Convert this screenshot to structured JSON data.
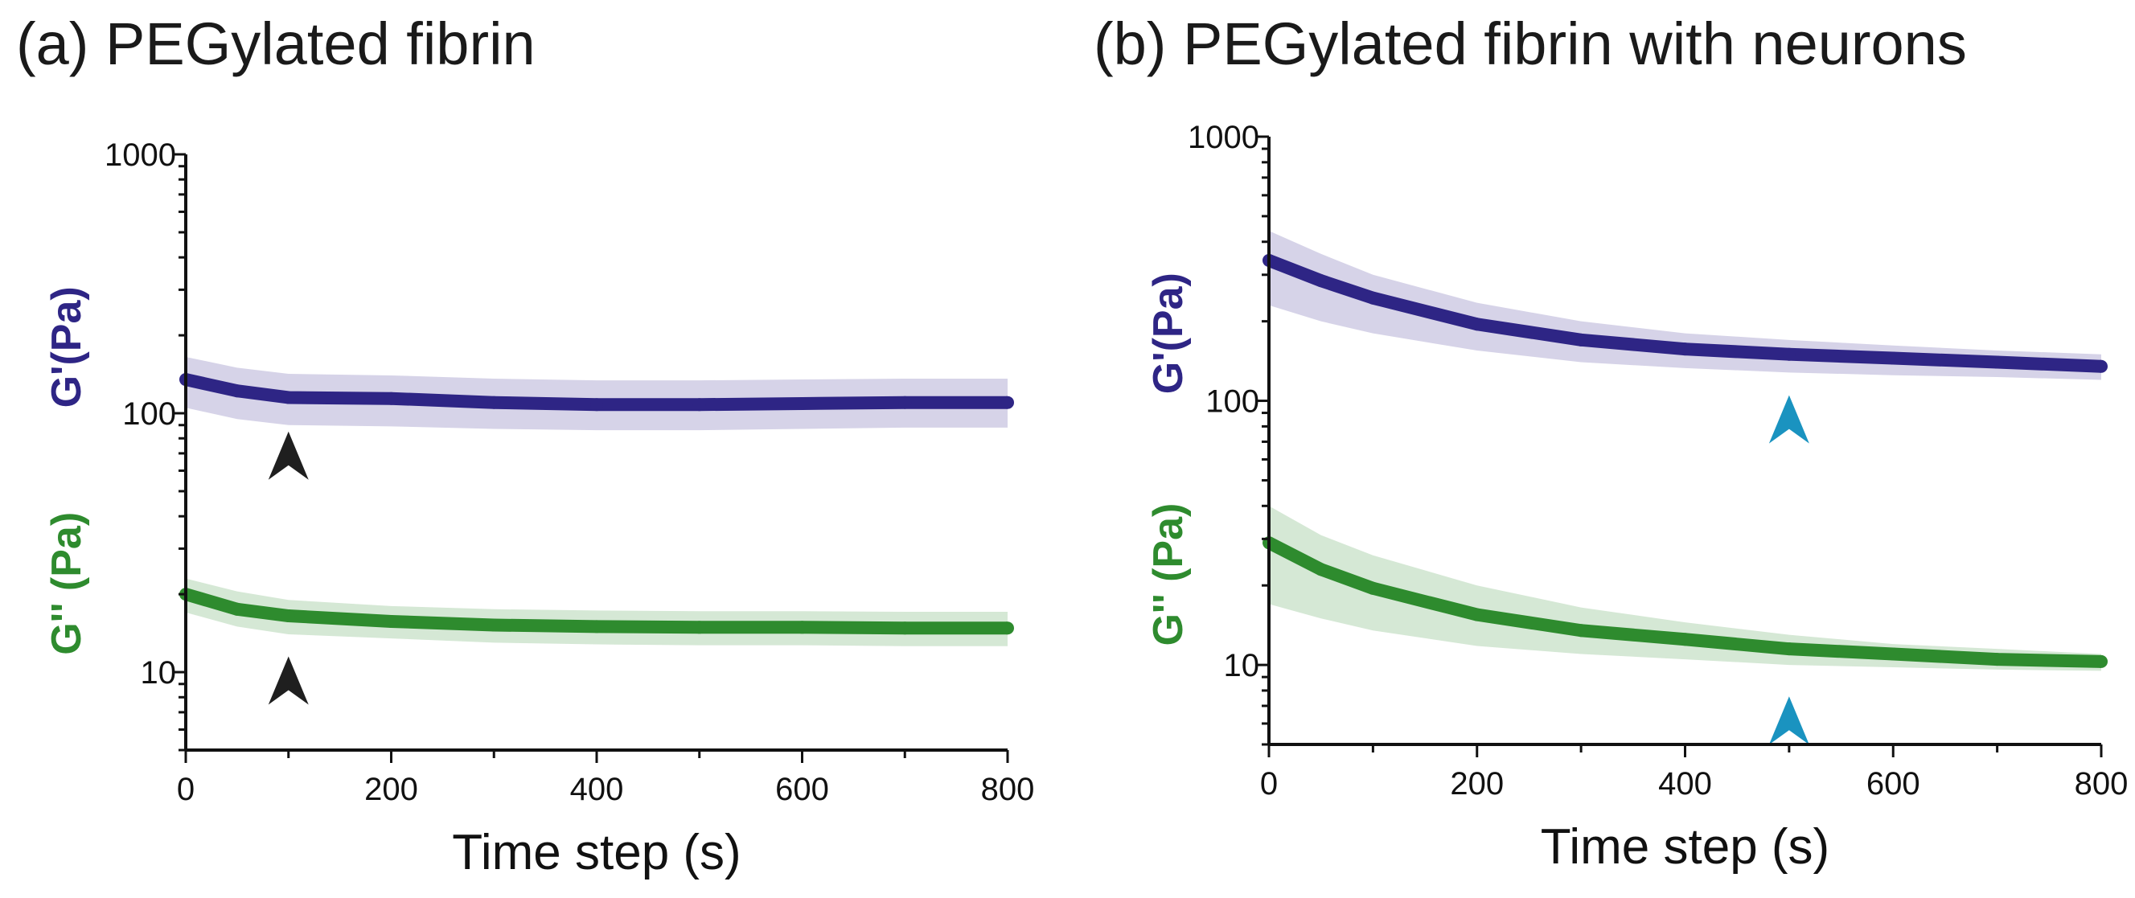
{
  "colors": {
    "gprime": "#2e2585",
    "gprime_band": "#d6d3e8",
    "gdouble": "#2e8b2e",
    "gdouble_band": "#d5e8d5",
    "arrow_a": "#1f1f1f",
    "arrow_b": "#1a93c0"
  },
  "chart_data": [
    {
      "type": "line",
      "title": "(a) PEGylated fibrin",
      "xlabel": "Time step (s)",
      "ylabels": [
        "G'(Pa)",
        "G'' (Pa)"
      ],
      "xlim": [
        0,
        800
      ],
      "ylim": [
        5,
        1000
      ],
      "yscale": "log",
      "xticks": [
        "0",
        "200",
        "400",
        "600",
        "800"
      ],
      "yticks": [
        "10",
        "100",
        "1000"
      ],
      "x": [
        0,
        50,
        100,
        200,
        300,
        400,
        500,
        600,
        700,
        800
      ],
      "series": [
        {
          "name": "G'",
          "values": [
            135,
            122,
            115,
            114,
            110,
            108,
            108,
            109,
            110,
            110
          ],
          "upper": [
            165,
            150,
            142,
            140,
            136,
            134,
            134,
            135,
            136,
            136
          ],
          "lower": [
            105,
            95,
            90,
            89,
            87,
            86,
            86,
            87,
            88,
            88
          ]
        },
        {
          "name": "G''",
          "values": [
            20,
            17.5,
            16.5,
            15.7,
            15.2,
            15,
            14.9,
            14.9,
            14.8,
            14.8
          ],
          "upper": [
            23,
            20.5,
            19,
            18,
            17.5,
            17.3,
            17.2,
            17.2,
            17.1,
            17.1
          ],
          "lower": [
            17,
            15,
            14,
            13.5,
            13,
            12.8,
            12.7,
            12.7,
            12.6,
            12.6
          ]
        }
      ],
      "arrows": [
        {
          "x": 100,
          "y": 85
        },
        {
          "x": 100,
          "y": 11.5
        }
      ]
    },
    {
      "type": "line",
      "title": "(b) PEGylated fibrin with neurons",
      "xlabel": "Time step (s)",
      "ylabels": [
        "G'(Pa)",
        "G'' (Pa)"
      ],
      "xlim": [
        0,
        800
      ],
      "ylim": [
        5,
        1000
      ],
      "yscale": "log",
      "xticks": [
        "0",
        "200",
        "400",
        "600",
        "800"
      ],
      "yticks": [
        "10",
        "100",
        "1000"
      ],
      "x": [
        0,
        50,
        100,
        200,
        300,
        400,
        500,
        600,
        700,
        800
      ],
      "series": [
        {
          "name": "G'",
          "values": [
            340,
            285,
            245,
            195,
            170,
            157,
            150,
            145,
            140,
            135
          ],
          "upper": [
            440,
            360,
            300,
            235,
            200,
            180,
            170,
            162,
            155,
            150
          ],
          "lower": [
            230,
            200,
            180,
            155,
            140,
            133,
            128,
            125,
            123,
            120
          ]
        },
        {
          "name": "G''",
          "values": [
            29,
            23,
            19.5,
            15.5,
            13.5,
            12.5,
            11.5,
            11,
            10.5,
            10.3
          ],
          "upper": [
            40,
            31,
            26,
            20,
            16.5,
            14.5,
            13,
            12,
            11.5,
            11
          ],
          "lower": [
            17,
            15,
            13.5,
            11.8,
            11,
            10.5,
            10,
            9.8,
            9.6,
            9.5
          ]
        }
      ],
      "arrows": [
        {
          "x": 500,
          "y": 105
        },
        {
          "x": 500,
          "y": 7.6
        }
      ]
    }
  ]
}
